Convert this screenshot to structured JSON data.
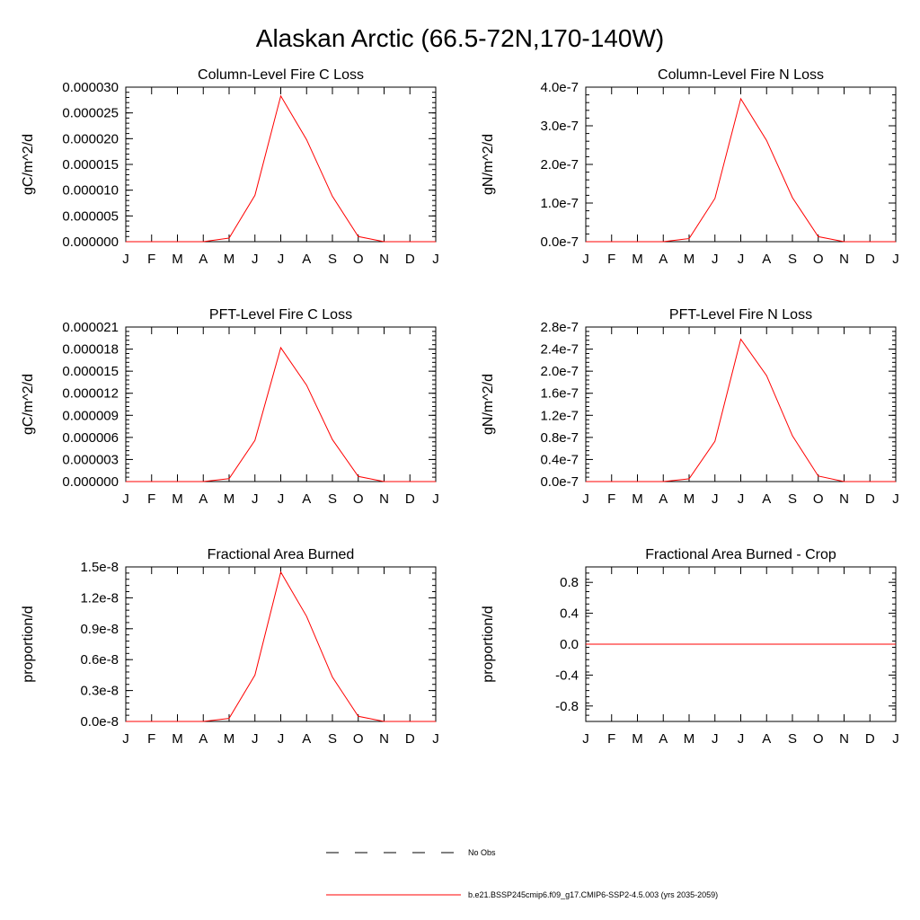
{
  "title": "Alaskan Arctic (66.5-72N,170-140W)",
  "legend": {
    "entries": [
      {
        "label": "No Obs",
        "style": "dashed",
        "color": "#000000"
      },
      {
        "label": "b.e21.BSSP245cmip6.f09_g17.CMIP6-SSP2-4.5.003 (yrs 2035-2059)",
        "style": "solid",
        "color": "#ff0000"
      }
    ]
  },
  "chart_data": [
    {
      "type": "line",
      "title": "Column-Level Fire C Loss",
      "ylabel": "gC/m^2/d",
      "categories": [
        "J",
        "F",
        "M",
        "A",
        "M",
        "J",
        "J",
        "A",
        "S",
        "O",
        "N",
        "D",
        "J"
      ],
      "ylim": [
        0,
        3e-05
      ],
      "yticks": [
        0,
        5e-06,
        1e-05,
        1.5e-05,
        2e-05,
        2.5e-05,
        3e-05
      ],
      "ytick_labels": [
        "0.000000",
        "0.000005",
        "0.000010",
        "0.000015",
        "0.000020",
        "0.000025",
        "0.000030"
      ],
      "series": [
        {
          "color": "#ff0000",
          "values": [
            0,
            0,
            0,
            0,
            7e-07,
            9e-06,
            2.83e-05,
            1.98e-05,
            8.8e-06,
            1e-06,
            0,
            0,
            0
          ]
        }
      ]
    },
    {
      "type": "line",
      "title": "Column-Level Fire N Loss",
      "ylabel": "gN/m^2/d",
      "categories": [
        "J",
        "F",
        "M",
        "A",
        "M",
        "J",
        "J",
        "A",
        "S",
        "O",
        "N",
        "D",
        "J"
      ],
      "ylim": [
        0,
        4e-07
      ],
      "yticks": [
        0,
        1e-07,
        2e-07,
        3e-07,
        4e-07
      ],
      "ytick_labels": [
        "0.0e-7",
        "1.0e-7",
        "2.0e-7",
        "3.0e-7",
        "4.0e-7"
      ],
      "series": [
        {
          "color": "#ff0000",
          "values": [
            0,
            0,
            0,
            0,
            8e-09,
            1.12e-07,
            3.7e-07,
            2.62e-07,
            1.14e-07,
            1.3e-08,
            0,
            0,
            0
          ]
        }
      ]
    },
    {
      "type": "line",
      "title": "PFT-Level Fire C Loss",
      "ylabel": "gC/m^2/d",
      "categories": [
        "J",
        "F",
        "M",
        "A",
        "M",
        "J",
        "J",
        "A",
        "S",
        "O",
        "N",
        "D",
        "J"
      ],
      "ylim": [
        0,
        2.1e-05
      ],
      "yticks": [
        0,
        3e-06,
        6e-06,
        9e-06,
        1.2e-05,
        1.5e-05,
        1.8e-05,
        2.1e-05
      ],
      "ytick_labels": [
        "0.000000",
        "0.000003",
        "0.000006",
        "0.000009",
        "0.000012",
        "0.000015",
        "0.000018",
        "0.000021"
      ],
      "series": [
        {
          "color": "#ff0000",
          "values": [
            0,
            0,
            0,
            0,
            4e-07,
            5.6e-06,
            1.82e-05,
            1.31e-05,
            5.7e-06,
            7e-07,
            0,
            0,
            0
          ]
        }
      ]
    },
    {
      "type": "line",
      "title": "PFT-Level Fire N Loss",
      "ylabel": "gN/m^2/d",
      "categories": [
        "J",
        "F",
        "M",
        "A",
        "M",
        "J",
        "J",
        "A",
        "S",
        "O",
        "N",
        "D",
        "J"
      ],
      "ylim": [
        0,
        2.8e-07
      ],
      "yticks": [
        0,
        4e-08,
        8e-08,
        1.2e-07,
        1.6e-07,
        2e-07,
        2.4e-07,
        2.8e-07
      ],
      "ytick_labels": [
        "0.0e-7",
        "0.4e-7",
        "0.8e-7",
        "1.2e-7",
        "1.6e-7",
        "2.0e-7",
        "2.4e-7",
        "2.8e-7"
      ],
      "series": [
        {
          "color": "#ff0000",
          "values": [
            0,
            0,
            0,
            0,
            5e-09,
            7.3e-08,
            2.58e-07,
            1.92e-07,
            8.3e-08,
            1e-08,
            0,
            0,
            0
          ]
        }
      ]
    },
    {
      "type": "line",
      "title": "Fractional Area Burned",
      "ylabel": "proportion/d",
      "categories": [
        "J",
        "F",
        "M",
        "A",
        "M",
        "J",
        "J",
        "A",
        "S",
        "O",
        "N",
        "D",
        "J"
      ],
      "ylim": [
        0,
        1.5e-08
      ],
      "yticks": [
        0,
        3e-09,
        6e-09,
        9e-09,
        1.2e-08,
        1.5e-08
      ],
      "ytick_labels": [
        "0.0e-8",
        "0.3e-8",
        "0.6e-8",
        "0.9e-8",
        "1.2e-8",
        "1.5e-8"
      ],
      "series": [
        {
          "color": "#ff0000",
          "values": [
            0,
            0,
            0,
            0,
            3e-10,
            4.5e-09,
            1.45e-08,
            1.02e-08,
            4.3e-09,
            5e-10,
            0,
            0,
            0
          ]
        }
      ]
    },
    {
      "type": "line",
      "title": "Fractional Area Burned - Crop",
      "ylabel": "proportion/d",
      "categories": [
        "J",
        "F",
        "M",
        "A",
        "M",
        "J",
        "J",
        "A",
        "S",
        "O",
        "N",
        "D",
        "J"
      ],
      "ylim": [
        -1,
        1
      ],
      "yticks": [
        -0.8,
        -0.4,
        0,
        0.4,
        0.8
      ],
      "ytick_labels": [
        "-0.8",
        "-0.4",
        "0.0",
        "0.4",
        "0.8"
      ],
      "series": [
        {
          "color": "#ff0000",
          "values": [
            0,
            0,
            0,
            0,
            0,
            0,
            0,
            0,
            0,
            0,
            0,
            0,
            0
          ]
        }
      ]
    }
  ]
}
